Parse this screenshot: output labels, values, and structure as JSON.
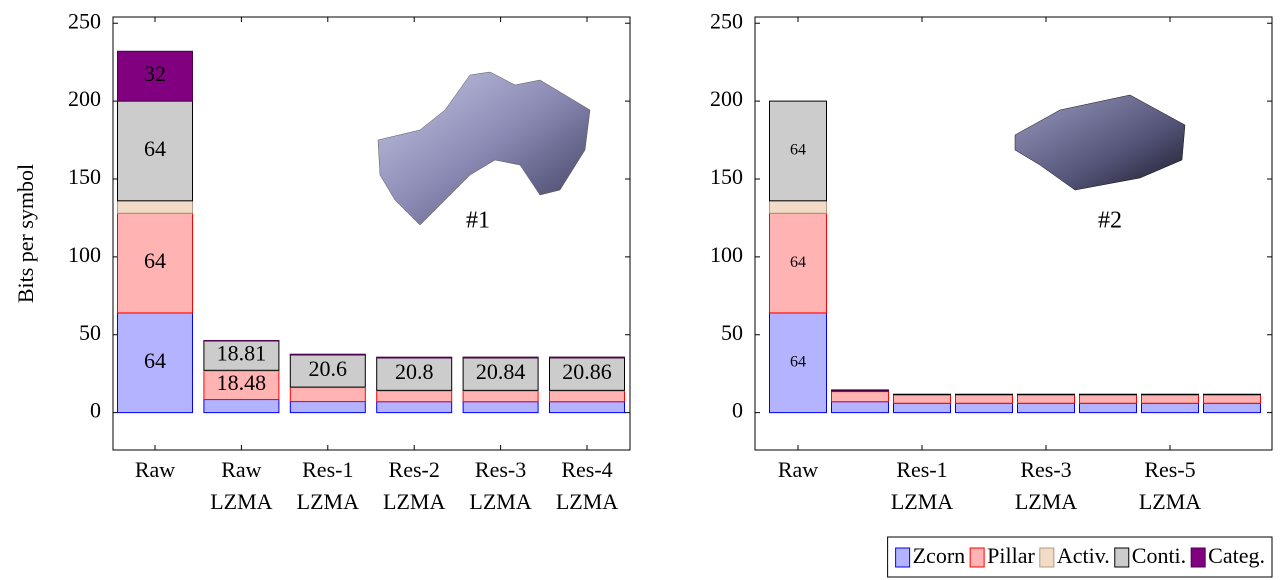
{
  "chart_data": [
    {
      "type": "bar",
      "stacked": true,
      "ylabel": "Bits per symbol",
      "annotation": "#1",
      "categories": [
        "Raw",
        "Raw LZMA",
        "Res-1 LZMA",
        "Res-2 LZMA",
        "Res-3 LZMA",
        "Res-4 LZMA"
      ],
      "series": [
        {
          "name": "Zcorn",
          "color": "#b3b3ff",
          "stroke": "#0000ff",
          "values": [
            64,
            8.4,
            7.1,
            7,
            7,
            7
          ],
          "show_labels": [
            true,
            false,
            false,
            false,
            false,
            false
          ]
        },
        {
          "name": "Pillar",
          "color": "#ffb3b3",
          "stroke": "#ff0000",
          "values": [
            64,
            18.48,
            9,
            7,
            7,
            7
          ],
          "show_labels": [
            true,
            true,
            false,
            false,
            false,
            false
          ]
        },
        {
          "name": "Activ.",
          "color": "#f2dcc8",
          "stroke": "#b39980",
          "values": [
            8,
            0.3,
            0.3,
            0.3,
            0.3,
            0.3
          ],
          "show_labels": [
            false,
            false,
            false,
            false,
            false,
            false
          ]
        },
        {
          "name": "Conti.",
          "color": "#cccccc",
          "stroke": "#000000",
          "values": [
            64,
            18.81,
            20.6,
            20.8,
            20.84,
            20.86
          ],
          "show_labels": [
            true,
            true,
            true,
            true,
            true,
            true
          ]
        },
        {
          "name": "Categ.",
          "color": "#800080",
          "stroke": "#4d004d",
          "values": [
            32,
            0.3,
            0.5,
            0.5,
            0.5,
            0.5
          ],
          "show_labels": [
            true,
            false,
            false,
            false,
            false,
            false
          ]
        }
      ],
      "ylim": [
        -24,
        254
      ],
      "yticks": [
        0,
        50,
        100,
        150,
        200,
        250
      ],
      "legend": "bottom-right"
    },
    {
      "type": "bar",
      "stacked": true,
      "annotation": "#2",
      "categories": [
        "Raw",
        null,
        "Res-1 LZMA",
        null,
        "Res-3 LZMA",
        null,
        "Res-5 LZMA",
        null
      ],
      "series": [
        {
          "color": "#b3b3ff",
          "stroke": "#0000ff",
          "values": [
            64,
            7,
            6,
            6,
            6,
            6,
            6,
            6
          ],
          "show_labels": [
            true,
            false,
            false,
            false,
            false,
            false,
            false,
            false
          ]
        },
        {
          "color": "#ffb3b3",
          "stroke": "#ff0000",
          "values": [
            64,
            6.5,
            5.5,
            5.5,
            5.5,
            5.5,
            5.5,
            5.5
          ],
          "show_labels": [
            true,
            false,
            false,
            false,
            false,
            false,
            false,
            false
          ]
        },
        {
          "color": "#f2dcc8",
          "stroke": "#b39980",
          "values": [
            8,
            0.3,
            0,
            0,
            0,
            0,
            0,
            0
          ],
          "show_labels": [
            false,
            false,
            false,
            false,
            false,
            false,
            false,
            false
          ]
        },
        {
          "color": "#cccccc",
          "stroke": "#000000",
          "values": [
            64,
            0.5,
            0.3,
            0.3,
            0.3,
            0.3,
            0.3,
            0.3
          ],
          "show_labels": [
            true,
            false,
            false,
            false,
            false,
            false,
            false,
            false
          ]
        },
        {
          "color": "#800080",
          "stroke": "#4d004d",
          "values": [
            0,
            0.3,
            0,
            0,
            0,
            0,
            0,
            0
          ],
          "show_labels": [
            false,
            false,
            false,
            false,
            false,
            false,
            false,
            false
          ]
        }
      ],
      "ylim": [
        -24,
        254
      ],
      "yticks": [
        0,
        50,
        100,
        150,
        200,
        250
      ]
    }
  ]
}
